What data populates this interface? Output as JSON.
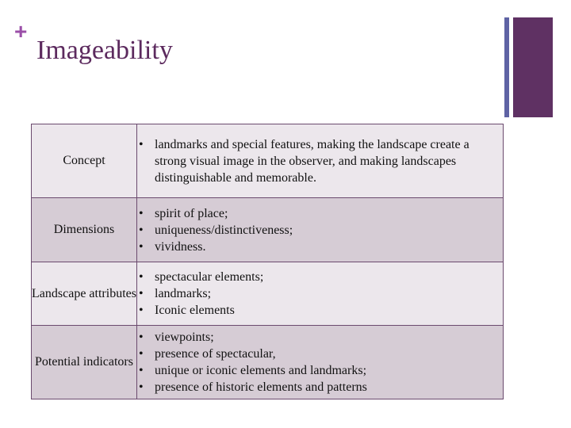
{
  "slide": {
    "plus_glyph": "+",
    "title": "Imageability"
  },
  "colors": {
    "title": "#5c2a5e",
    "plus": "#9b4fa8",
    "deco_thin": "#5f63a4",
    "deco_thick": "#5f3163",
    "row_light": "#ece7ec",
    "row_dark": "#d6ccd5"
  },
  "table": {
    "rows": [
      {
        "label": "Concept",
        "items": [
          "landmarks and special features, making the landscape create a strong visual image in the observer, and making landscapes distinguishable and memorable."
        ]
      },
      {
        "label": "Dimensions",
        "items": [
          "spirit of place;",
          "uniqueness/distinctiveness;",
          "vividness."
        ]
      },
      {
        "label": "Landscape attributes",
        "items": [
          "spectacular elements;",
          "landmarks;",
          "Iconic elements"
        ]
      },
      {
        "label": "Potential indicators",
        "items": [
          "viewpoints;",
          "presence of spectacular,",
          "unique or iconic elements and landmarks;",
          "presence of historic elements and patterns"
        ]
      }
    ]
  }
}
